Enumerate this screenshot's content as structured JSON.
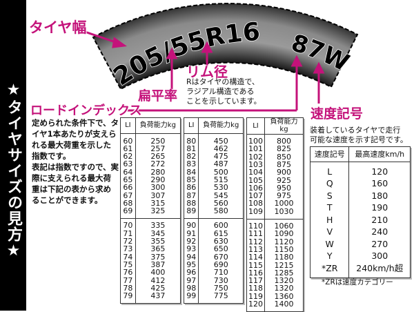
{
  "sidebar": {
    "title": "★タイヤサイズの見方★"
  },
  "tire": {
    "size_text": "205/55R16",
    "service_text": "87W"
  },
  "labels": {
    "width": "タイヤ幅",
    "aspect_ratio": "扁平率",
    "rim": "リム径",
    "rim_desc": [
      "Rはタイヤの構造で、",
      "ラジアル構造である",
      "ことを示しています。"
    ],
    "load_index": "ロードインデックス",
    "load_desc": [
      "定められた条件下で、タ",
      "イヤ1本あたりが支えら",
      "れる最大荷重を示した",
      "指数です。",
      "表記は指数ですので、実",
      "際に支えられる最大荷",
      "重は下記の表から求め",
      "ることができます。"
    ],
    "speed": "速度記号",
    "speed_desc": [
      "装着しているタイヤで走行",
      "可能な速度を示す記号です。"
    ]
  },
  "load_tables": {
    "header_li": "LI",
    "header_kg": "負荷能力kg",
    "tables": [
      [
        [
          [
            "60",
            "250"
          ],
          [
            "61",
            "257"
          ],
          [
            "62",
            "265"
          ],
          [
            "63",
            "272"
          ],
          [
            "64",
            "280"
          ],
          [
            "65",
            "290"
          ],
          [
            "66",
            "300"
          ],
          [
            "67",
            "307"
          ],
          [
            "68",
            "315"
          ],
          [
            "69",
            "325"
          ]
        ],
        [
          [
            "70",
            "335"
          ],
          [
            "71",
            "345"
          ],
          [
            "72",
            "355"
          ],
          [
            "73",
            "365"
          ],
          [
            "74",
            "375"
          ],
          [
            "75",
            "387"
          ],
          [
            "76",
            "400"
          ],
          [
            "77",
            "412"
          ],
          [
            "78",
            "425"
          ],
          [
            "79",
            "437"
          ]
        ]
      ],
      [
        [
          [
            "80",
            "450"
          ],
          [
            "81",
            "462"
          ],
          [
            "82",
            "475"
          ],
          [
            "83",
            "487"
          ],
          [
            "84",
            "500"
          ],
          [
            "85",
            "515"
          ],
          [
            "86",
            "530"
          ],
          [
            "87",
            "545"
          ],
          [
            "88",
            "560"
          ],
          [
            "89",
            "580"
          ]
        ],
        [
          [
            "90",
            "600"
          ],
          [
            "91",
            "615"
          ],
          [
            "92",
            "630"
          ],
          [
            "93",
            "650"
          ],
          [
            "94",
            "670"
          ],
          [
            "95",
            "690"
          ],
          [
            "96",
            "710"
          ],
          [
            "97",
            "730"
          ],
          [
            "98",
            "750"
          ],
          [
            "99",
            "775"
          ]
        ]
      ],
      [
        [
          [
            "100",
            "800"
          ],
          [
            "101",
            "825"
          ],
          [
            "102",
            "850"
          ],
          [
            "103",
            "875"
          ],
          [
            "104",
            "900"
          ],
          [
            "105",
            "925"
          ],
          [
            "106",
            "950"
          ],
          [
            "107",
            "975"
          ],
          [
            "108",
            "1000"
          ],
          [
            "109",
            "1030"
          ]
        ],
        [
          [
            "110",
            "1060"
          ],
          [
            "111",
            "1090"
          ],
          [
            "112",
            "1120"
          ],
          [
            "113",
            "1150"
          ],
          [
            "114",
            "1180"
          ],
          [
            "115",
            "1215"
          ],
          [
            "116",
            "1285"
          ],
          [
            "117",
            "1320"
          ],
          [
            "118",
            "1320"
          ],
          [
            "119",
            "1360"
          ],
          [
            "120",
            "1400"
          ]
        ]
      ]
    ]
  },
  "speed_table": {
    "header_symbol": "速度記号",
    "header_speed": "最高速度km/h",
    "rows": [
      [
        "L",
        "120"
      ],
      [
        "Q",
        "160"
      ],
      [
        "S",
        "180"
      ],
      [
        "T",
        "190"
      ],
      [
        "H",
        "210"
      ],
      [
        "V",
        "240"
      ],
      [
        "W",
        "270"
      ],
      [
        "Y",
        "300"
      ],
      [
        "*ZR",
        "240km/h超"
      ]
    ],
    "note": "*ZRは速度カテゴリー"
  },
  "colors": {
    "accent": "#c4127a",
    "tire_dark": "#1a1a1a",
    "tire_mid": "#8a8a8a"
  }
}
